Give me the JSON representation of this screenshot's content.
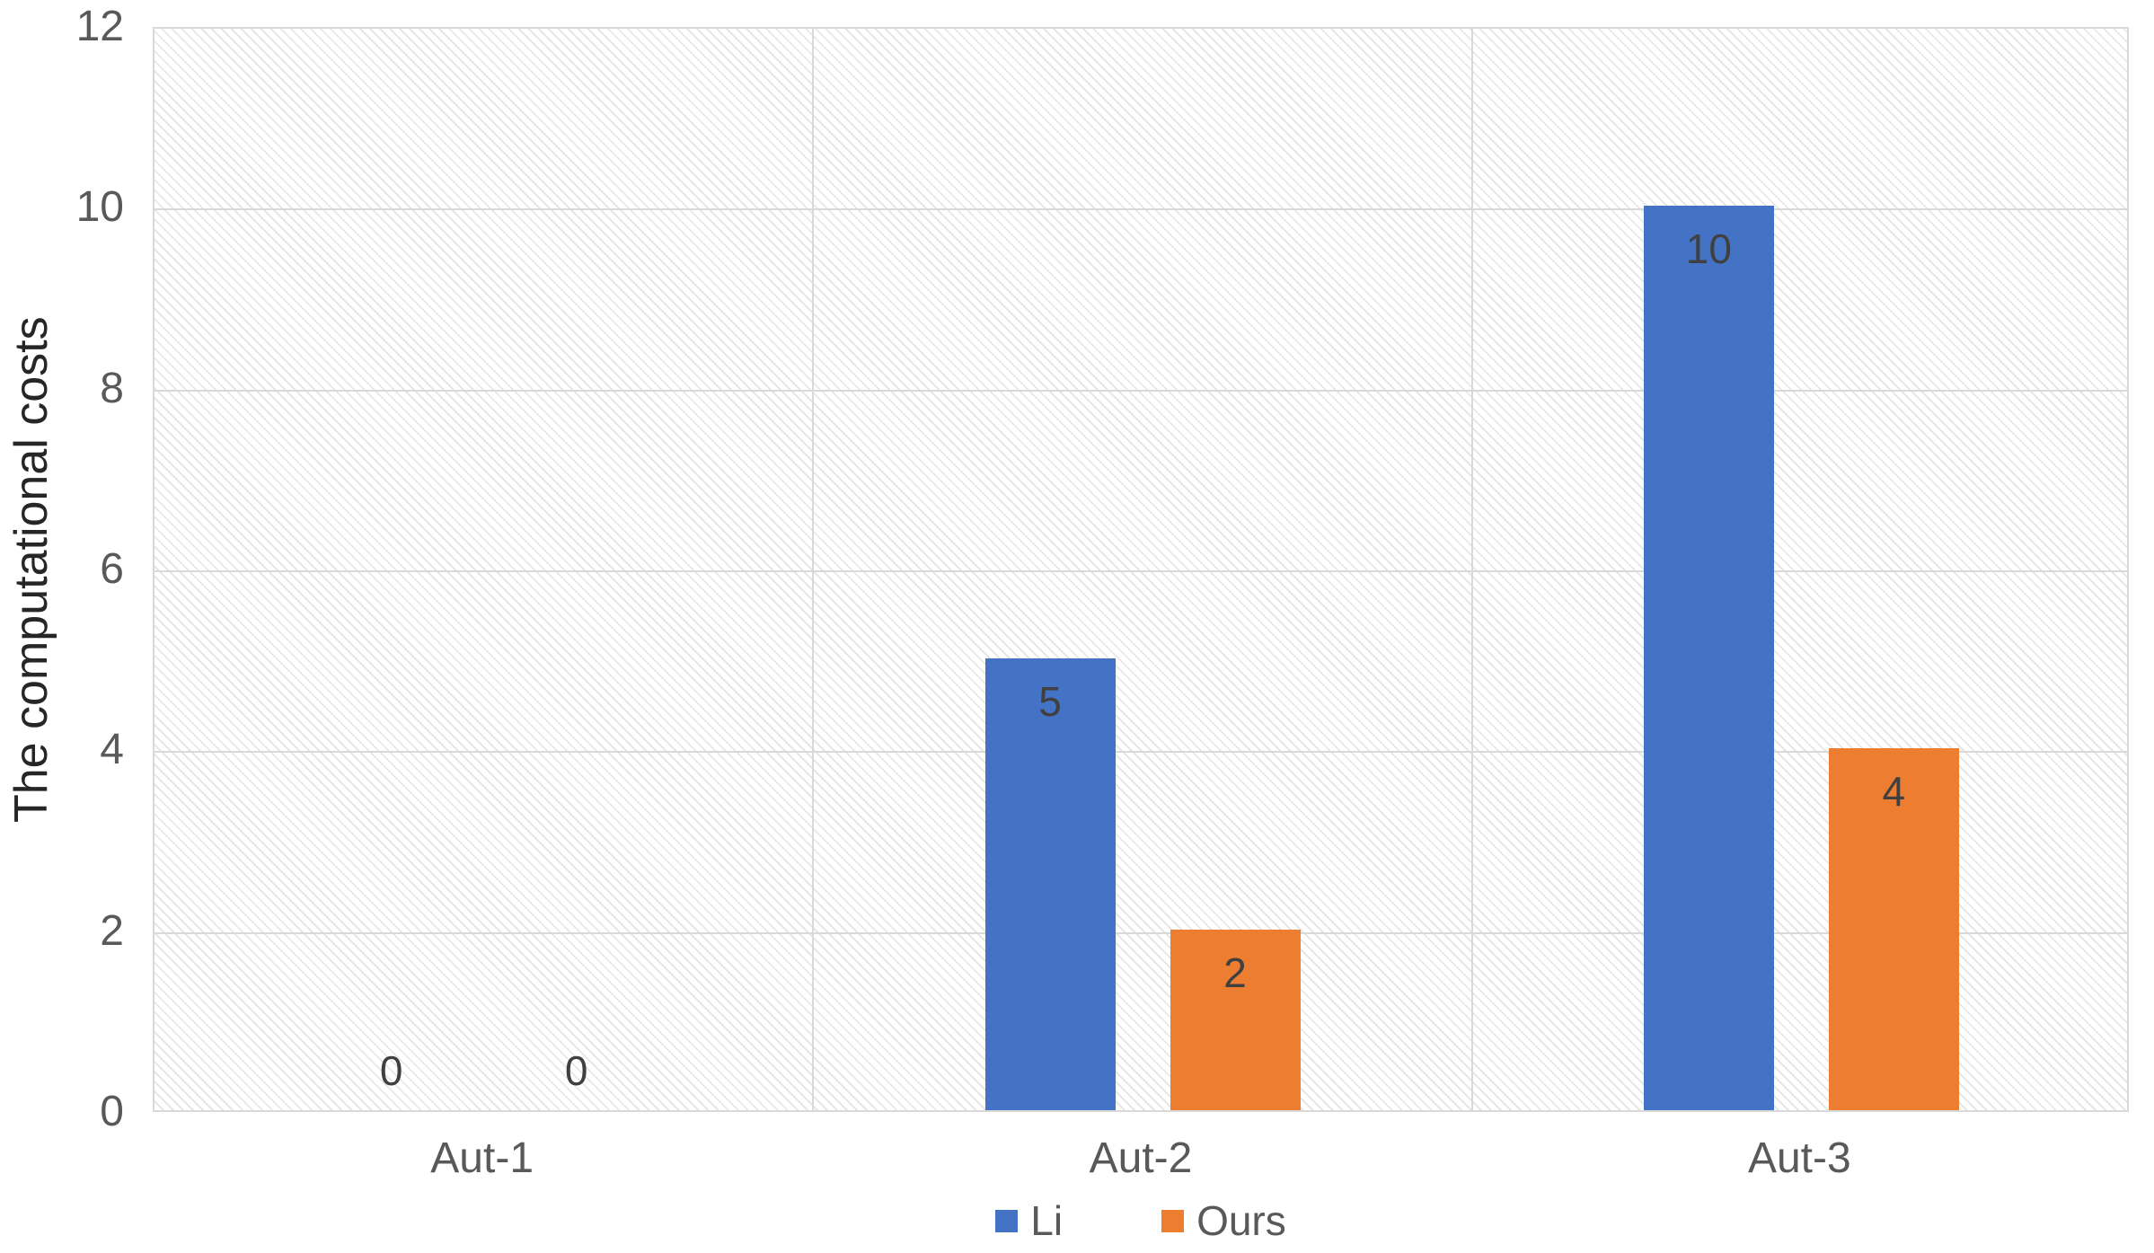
{
  "chart_data": {
    "type": "bar",
    "title": "",
    "categories": [
      "Aut-1",
      "Aut-2",
      "Aut-3"
    ],
    "series": [
      {
        "name": "Li",
        "color": "#4472C4",
        "values": [
          0,
          5,
          10
        ]
      },
      {
        "name": "Ours",
        "color": "#ED7D31",
        "values": [
          0,
          2,
          4
        ]
      }
    ],
    "xlabel": "",
    "ylabel": "The computational costs",
    "ylim": [
      0,
      12
    ],
    "yticks": [
      0,
      2,
      4,
      6,
      8,
      10,
      12
    ],
    "grid": true,
    "vertical_category_separators": true,
    "plot_background": "diagonal-hatch",
    "legend_position": "bottom-center",
    "data_labels": [
      "0",
      "5",
      "10",
      "0",
      "2",
      "4"
    ]
  },
  "styles": {
    "series_blue": "#4472C4",
    "series_orange": "#ED7D31",
    "gridline": "#D9D9D9",
    "axis_text": "#595959",
    "data_label_text": "#404040",
    "axis_title_text": "#262626",
    "hatch_line": "#E3E3E3",
    "background": "#FFFFFF"
  }
}
